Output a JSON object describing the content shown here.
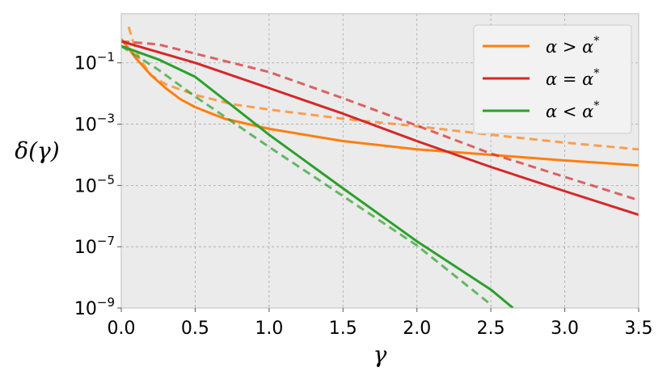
{
  "chart_data": {
    "type": "line",
    "xlabel": "γ",
    "ylabel": "δ(γ)",
    "xlim": [
      0.0,
      3.5
    ],
    "ylim": [
      1e-09,
      4
    ],
    "yscale": "log",
    "grid": true,
    "legend_placement": "top-right",
    "x_ticks": [
      "0.0",
      "0.5",
      "1.0",
      "1.5",
      "2.0",
      "2.5",
      "3.0",
      "3.5"
    ],
    "y_ticks": [
      {
        "value": 0.1,
        "base": "10",
        "exp": "−1"
      },
      {
        "value": 0.001,
        "base": "10",
        "exp": "−3"
      },
      {
        "value": 1e-05,
        "base": "10",
        "exp": "−5"
      },
      {
        "value": 1e-07,
        "base": "10",
        "exp": "−7"
      },
      {
        "value": 1e-09,
        "base": "10",
        "exp": "−9"
      }
    ],
    "series": [
      {
        "name": "α > α*",
        "color": "#ff7f0e",
        "style": "solid",
        "x": [
          0.0,
          0.1,
          0.2,
          0.3,
          0.4,
          0.5,
          0.7,
          1.0,
          1.5,
          2.0,
          2.5,
          3.0,
          3.5
        ],
        "y": [
          0.6,
          0.14,
          0.04,
          0.015,
          0.0065,
          0.0036,
          0.0015,
          0.0007,
          0.00028,
          0.00015,
          0.0001,
          6.5e-05,
          4.5e-05
        ]
      },
      {
        "name": "α > α* (dashed)",
        "color": "#ff7f0e",
        "style": "dashed",
        "x": [
          0.05,
          0.08,
          0.12,
          0.2,
          0.3,
          0.5,
          0.75,
          1.0,
          1.5,
          2.0,
          2.5,
          3.0,
          3.5
        ],
        "y": [
          1.5,
          0.5,
          0.15,
          0.04,
          0.02,
          0.009,
          0.0045,
          0.003,
          0.0015,
          0.00085,
          0.00045,
          0.00025,
          0.00015
        ]
      },
      {
        "name": "α = α*",
        "color": "#d62728",
        "style": "solid",
        "x": [
          0.0,
          0.5,
          1.0,
          1.5,
          2.0,
          2.5,
          3.0,
          3.5
        ],
        "y": [
          0.5,
          0.1,
          0.015,
          0.0022,
          0.00028,
          4e-05,
          6.5e-06,
          1.1e-06
        ]
      },
      {
        "name": "α = α* (dashed)",
        "color": "#d62728",
        "style": "dashed",
        "x": [
          0.0,
          0.25,
          0.5,
          1.0,
          1.5,
          2.0,
          2.5,
          3.0,
          3.5
        ],
        "y": [
          0.5,
          0.4,
          0.2,
          0.05,
          0.007,
          0.0009,
          0.00011,
          1.9e-05,
          3.3e-06
        ]
      },
      {
        "name": "α < α*",
        "color": "#2ca02c",
        "style": "solid",
        "x": [
          0.0,
          0.25,
          0.5,
          0.75,
          1.0,
          1.5,
          2.0,
          2.5,
          2.65
        ],
        "y": [
          0.35,
          0.13,
          0.035,
          0.004,
          0.00045,
          8e-06,
          1.5e-07,
          4e-09,
          1e-09
        ]
      },
      {
        "name": "α < α* (dashed)",
        "color": "#2ca02c",
        "style": "dashed",
        "x": [
          0.0,
          0.25,
          0.5,
          0.75,
          1.0,
          1.5,
          2.0,
          2.5
        ],
        "y": [
          0.35,
          0.06,
          0.008,
          0.0012,
          0.00018,
          4.5e-06,
          1.1e-07,
          1.3e-09
        ]
      }
    ],
    "legend": [
      {
        "label_lhs": "α",
        "op": ">",
        "rhs": "α",
        "sup": "*",
        "color": "#ff7f0e"
      },
      {
        "label_lhs": "α",
        "op": "=",
        "rhs": "α",
        "sup": "*",
        "color": "#d62728"
      },
      {
        "label_lhs": "α",
        "op": "<",
        "rhs": "α",
        "sup": "*",
        "color": "#2ca02c"
      }
    ]
  }
}
